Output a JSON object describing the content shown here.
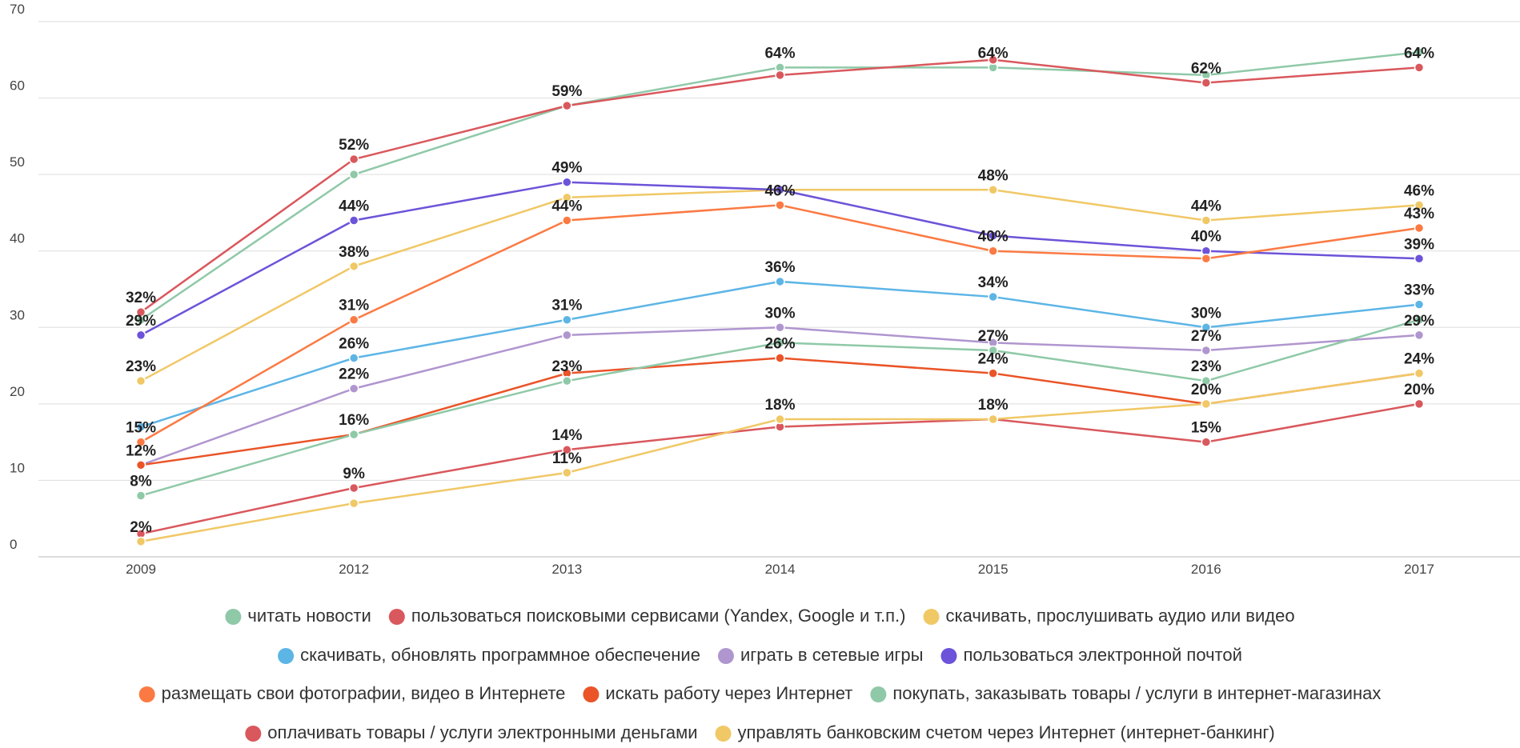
{
  "chart_data": {
    "type": "line",
    "categories": [
      "2009",
      "2012",
      "2013",
      "2014",
      "2015",
      "2016",
      "2017"
    ],
    "ylim": [
      0,
      70
    ],
    "yticks": [
      0,
      10,
      20,
      30,
      40,
      50,
      60,
      70
    ],
    "grid": true,
    "legend": "bottom",
    "series": [
      {
        "name": "читать новости",
        "color": "#8fc9a8",
        "values": [
          31,
          50,
          59,
          64,
          64,
          63,
          66
        ],
        "value_labels": [
          null,
          null,
          null,
          "64%",
          "64%",
          null,
          null
        ]
      },
      {
        "name": "пользоваться поисковыми сервисами (Yandex, Google и т.п.)",
        "color": "#d9585d",
        "values": [
          32,
          52,
          59,
          63,
          65,
          62,
          64
        ],
        "value_labels": [
          "32%",
          "52%",
          "59%",
          null,
          null,
          "62%",
          "64%"
        ]
      },
      {
        "name": "скачивать, прослушивать аудио или видео",
        "color": "#f0c866",
        "values": [
          23,
          38,
          47,
          48,
          48,
          44,
          46
        ],
        "value_labels": [
          "23%",
          "38%",
          null,
          null,
          "48%",
          "44%",
          "46%"
        ]
      },
      {
        "name": "скачивать, обновлять программное обеспечение",
        "color": "#5db5e6",
        "values": [
          17,
          26,
          31,
          36,
          34,
          30,
          33
        ],
        "value_labels": [
          null,
          "26%",
          "31%",
          "36%",
          "34%",
          "30%",
          "33%"
        ]
      },
      {
        "name": "играть в сетевые игры",
        "color": "#b096cf",
        "values": [
          12,
          22,
          29,
          30,
          28,
          27,
          29
        ],
        "value_labels": [
          null,
          "22%",
          null,
          "30%",
          null,
          "27%",
          "29%"
        ]
      },
      {
        "name": "пользоваться электронной почтой",
        "color": "#6d53d9",
        "values": [
          29,
          44,
          49,
          48,
          42,
          40,
          39
        ],
        "value_labels": [
          "29%",
          "44%",
          "49%",
          null,
          null,
          "40%",
          "39%"
        ]
      },
      {
        "name": "размещать свои фотографии, видео в Интернете",
        "color": "#fb7a43",
        "values": [
          15,
          31,
          44,
          46,
          40,
          39,
          43
        ],
        "value_labels": [
          "15%",
          "31%",
          "44%",
          "46%",
          "40%",
          null,
          "43%"
        ]
      },
      {
        "name": "искать работу через Интернет",
        "color": "#ea5428",
        "values": [
          12,
          16,
          24,
          26,
          24,
          20,
          24
        ],
        "value_labels": [
          "12%",
          "16%",
          null,
          "26%",
          "24%",
          "20%",
          null
        ]
      },
      {
        "name": "покупать, заказывать товары / услуги в интернет-магазинах",
        "color": "#8fc9a8",
        "values": [
          8,
          16,
          23,
          28,
          27,
          23,
          31
        ],
        "value_labels": [
          "8%",
          null,
          "23%",
          null,
          "27%",
          "23%",
          null
        ]
      },
      {
        "name": "оплачивать товары / услуги электронными деньгами",
        "color": "#d9585d",
        "values": [
          3,
          9,
          14,
          17,
          18,
          15,
          20
        ],
        "value_labels": [
          null,
          "9%",
          "14%",
          null,
          "18%",
          "15%",
          "20%"
        ]
      },
      {
        "name": "управлять банковским счетом через Интернет (интернет-банкинг)",
        "color": "#f0c866",
        "values": [
          2,
          7,
          11,
          18,
          18,
          20,
          24
        ],
        "value_labels": [
          "2%",
          null,
          "11%",
          "18%",
          null,
          null,
          "24%"
        ]
      }
    ]
  }
}
